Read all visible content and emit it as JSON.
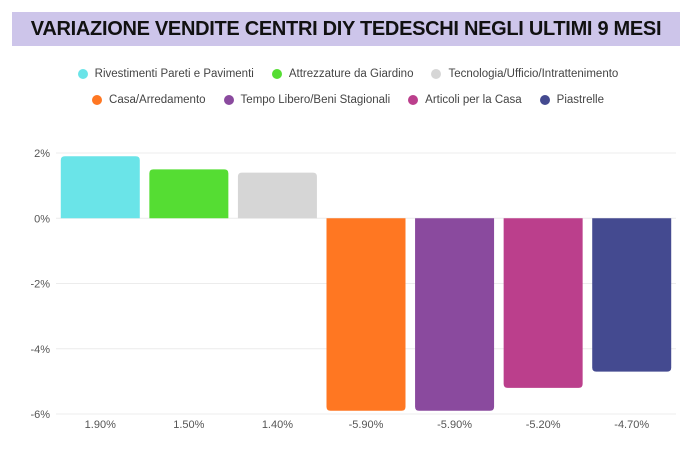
{
  "chart_data": {
    "type": "bar",
    "title": "VARIAZIONE VENDITE CENTRI DIY TEDESCHI NEGLI ULTIMI 9 MESI",
    "categories": [
      "1.90%",
      "1.50%",
      "1.40%",
      "-5.90%",
      "-5.90%",
      "-5.20%",
      "-4.70%"
    ],
    "series": [
      {
        "name": "Rivestimenti Pareti e Pavimenti",
        "value": 1.9,
        "color": "#6ae4e8"
      },
      {
        "name": "Attrezzature da Giardino",
        "value": 1.5,
        "color": "#55dd33"
      },
      {
        "name": "Tecnologia/Ufficio/Intrattenimento",
        "value": 1.4,
        "color": "#d6d6d6"
      },
      {
        "name": "Casa/Arredamento",
        "value": -5.9,
        "color": "#ff7722"
      },
      {
        "name": "Tempo Libero/Beni Stagionali",
        "value": -5.9,
        "color": "#8a4a9e"
      },
      {
        "name": "Articoli per la Casa",
        "value": -5.2,
        "color": "#bb3f8c"
      },
      {
        "name": "Piastrelle",
        "value": -4.7,
        "color": "#444a90"
      }
    ],
    "yticks": [
      "2%",
      "0%",
      "-2%",
      "-4%",
      "-6%"
    ],
    "ytick_values": [
      2,
      0,
      -2,
      -4,
      -6
    ],
    "ylim": [
      -6,
      2
    ],
    "grid": true,
    "legend_position": "top",
    "banner_color": "#cdc5ea"
  }
}
